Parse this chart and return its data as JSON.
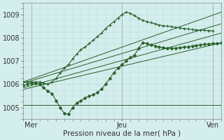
{
  "xlabel": "Pression niveau de la mer( hPa )",
  "background_color": "#d4eeed",
  "plot_bg_color": "#d4eeed",
  "grid_color": "#b8d8d4",
  "line_color": "#2a5f2a",
  "ylim": [
    1004.5,
    1009.5
  ],
  "xlim": [
    0,
    48
  ],
  "yticks": [
    1005,
    1006,
    1007,
    1008,
    1009
  ],
  "xtick_positions": [
    2,
    24,
    46
  ],
  "xtick_labels": [
    "Mer",
    "Jeu",
    "Ven"
  ],
  "vlines_x": [
    2,
    24,
    46
  ],
  "straight_lines": [
    {
      "x0": 0,
      "y0": 1006.1,
      "x1": 48,
      "y1": 1009.1
    },
    {
      "x0": 0,
      "y0": 1006.05,
      "x1": 48,
      "y1": 1008.6
    },
    {
      "x0": 0,
      "y0": 1005.85,
      "x1": 48,
      "y1": 1008.2
    },
    {
      "x0": 0,
      "y0": 1005.78,
      "x1": 48,
      "y1": 1007.78
    },
    {
      "x0": 0,
      "y0": 1005.1,
      "x1": 48,
      "y1": 1005.1
    }
  ],
  "wiggly_x": [
    0,
    1,
    2,
    3,
    4,
    5,
    6,
    7,
    8,
    9,
    10,
    11,
    12,
    13,
    14,
    15,
    16,
    17,
    18,
    19,
    20,
    21,
    22,
    23,
    24,
    25,
    26,
    27,
    28,
    29,
    30,
    31,
    32,
    33,
    34,
    35,
    36,
    37,
    38,
    39,
    40,
    41,
    42,
    43,
    44,
    45,
    46,
    47,
    48
  ],
  "wiggly_y": [
    1005.95,
    1006.0,
    1006.05,
    1006.05,
    1006.0,
    1005.85,
    1005.7,
    1005.6,
    1005.3,
    1005.0,
    1004.75,
    1004.72,
    1005.0,
    1005.2,
    1005.3,
    1005.4,
    1005.5,
    1005.55,
    1005.65,
    1005.8,
    1006.0,
    1006.25,
    1006.5,
    1006.7,
    1006.85,
    1007.0,
    1007.15,
    1007.25,
    1007.55,
    1007.8,
    1007.75,
    1007.7,
    1007.65,
    1007.6,
    1007.58,
    1007.56,
    1007.55,
    1007.56,
    1007.58,
    1007.6,
    1007.62,
    1007.65,
    1007.68,
    1007.7,
    1007.72,
    1007.74,
    1007.75,
    1007.76,
    1007.78
  ],
  "top_wiggly_x": [
    0,
    1,
    2,
    3,
    4,
    5,
    6,
    7,
    8,
    9,
    10,
    11,
    12,
    13,
    14,
    15,
    16,
    17,
    18,
    19,
    20,
    21,
    22,
    23,
    24,
    25,
    26,
    27,
    28,
    29,
    30,
    31,
    32,
    33,
    34,
    35,
    36,
    37,
    38,
    39,
    40,
    41,
    42,
    43,
    44,
    45,
    46
  ],
  "top_wiggly_y": [
    1006.1,
    1006.1,
    1006.1,
    1006.1,
    1006.1,
    1006.05,
    1006.0,
    1006.1,
    1006.25,
    1006.5,
    1006.7,
    1006.85,
    1007.1,
    1007.3,
    1007.5,
    1007.6,
    1007.75,
    1007.9,
    1008.05,
    1008.2,
    1008.4,
    1008.55,
    1008.7,
    1008.85,
    1009.0,
    1009.1,
    1009.05,
    1008.95,
    1008.85,
    1008.75,
    1008.7,
    1008.65,
    1008.6,
    1008.55,
    1008.52,
    1008.5,
    1008.48,
    1008.45,
    1008.42,
    1008.4,
    1008.38,
    1008.36,
    1008.34,
    1008.33,
    1008.32,
    1008.31,
    1008.3
  ]
}
